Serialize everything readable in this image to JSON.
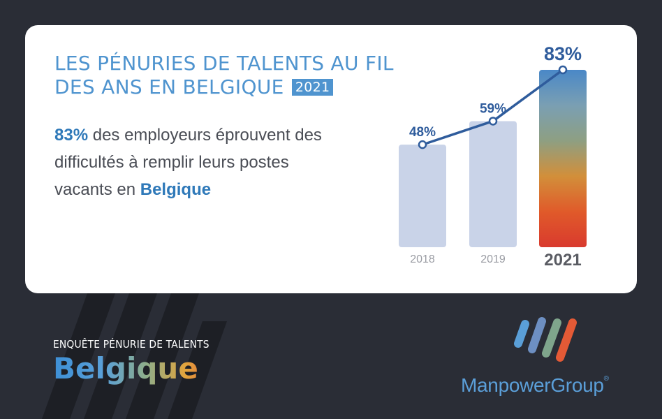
{
  "title": {
    "line1": "LES PÉNURIES DE TALENTS AU FIL",
    "line2": "DES ANS EN BELGIQUE",
    "year_badge": "2021"
  },
  "description": {
    "highlight_percent": "83%",
    "text_part1": " des employeurs éprouvent des difficultés à remplir leurs postes vacants en ",
    "highlight_country": "Belgique"
  },
  "chart_data": {
    "type": "bar",
    "categories": [
      "2018",
      "2019",
      "2021"
    ],
    "values": [
      48,
      59,
      83
    ],
    "value_labels": [
      "48%",
      "59%",
      "83%"
    ],
    "ylim": [
      0,
      100
    ],
    "title": "",
    "xlabel": "",
    "ylabel": "",
    "bar_color": "#c9d3e8",
    "highlight_bar": "2021",
    "line_color": "#2f5c9c",
    "gradient_colors": [
      "#4a88c7",
      "#7a9fb3",
      "#8e9f82",
      "#d28f3a",
      "#e05a2a",
      "#d93a2e"
    ]
  },
  "footer": {
    "survey_label": "ENQUÊTE PÉNURIE DE TALENTS",
    "country": "Belgique",
    "brand_name": "ManpowerGroup",
    "brand_mark": "®",
    "stripe_color": "#1e2026"
  }
}
